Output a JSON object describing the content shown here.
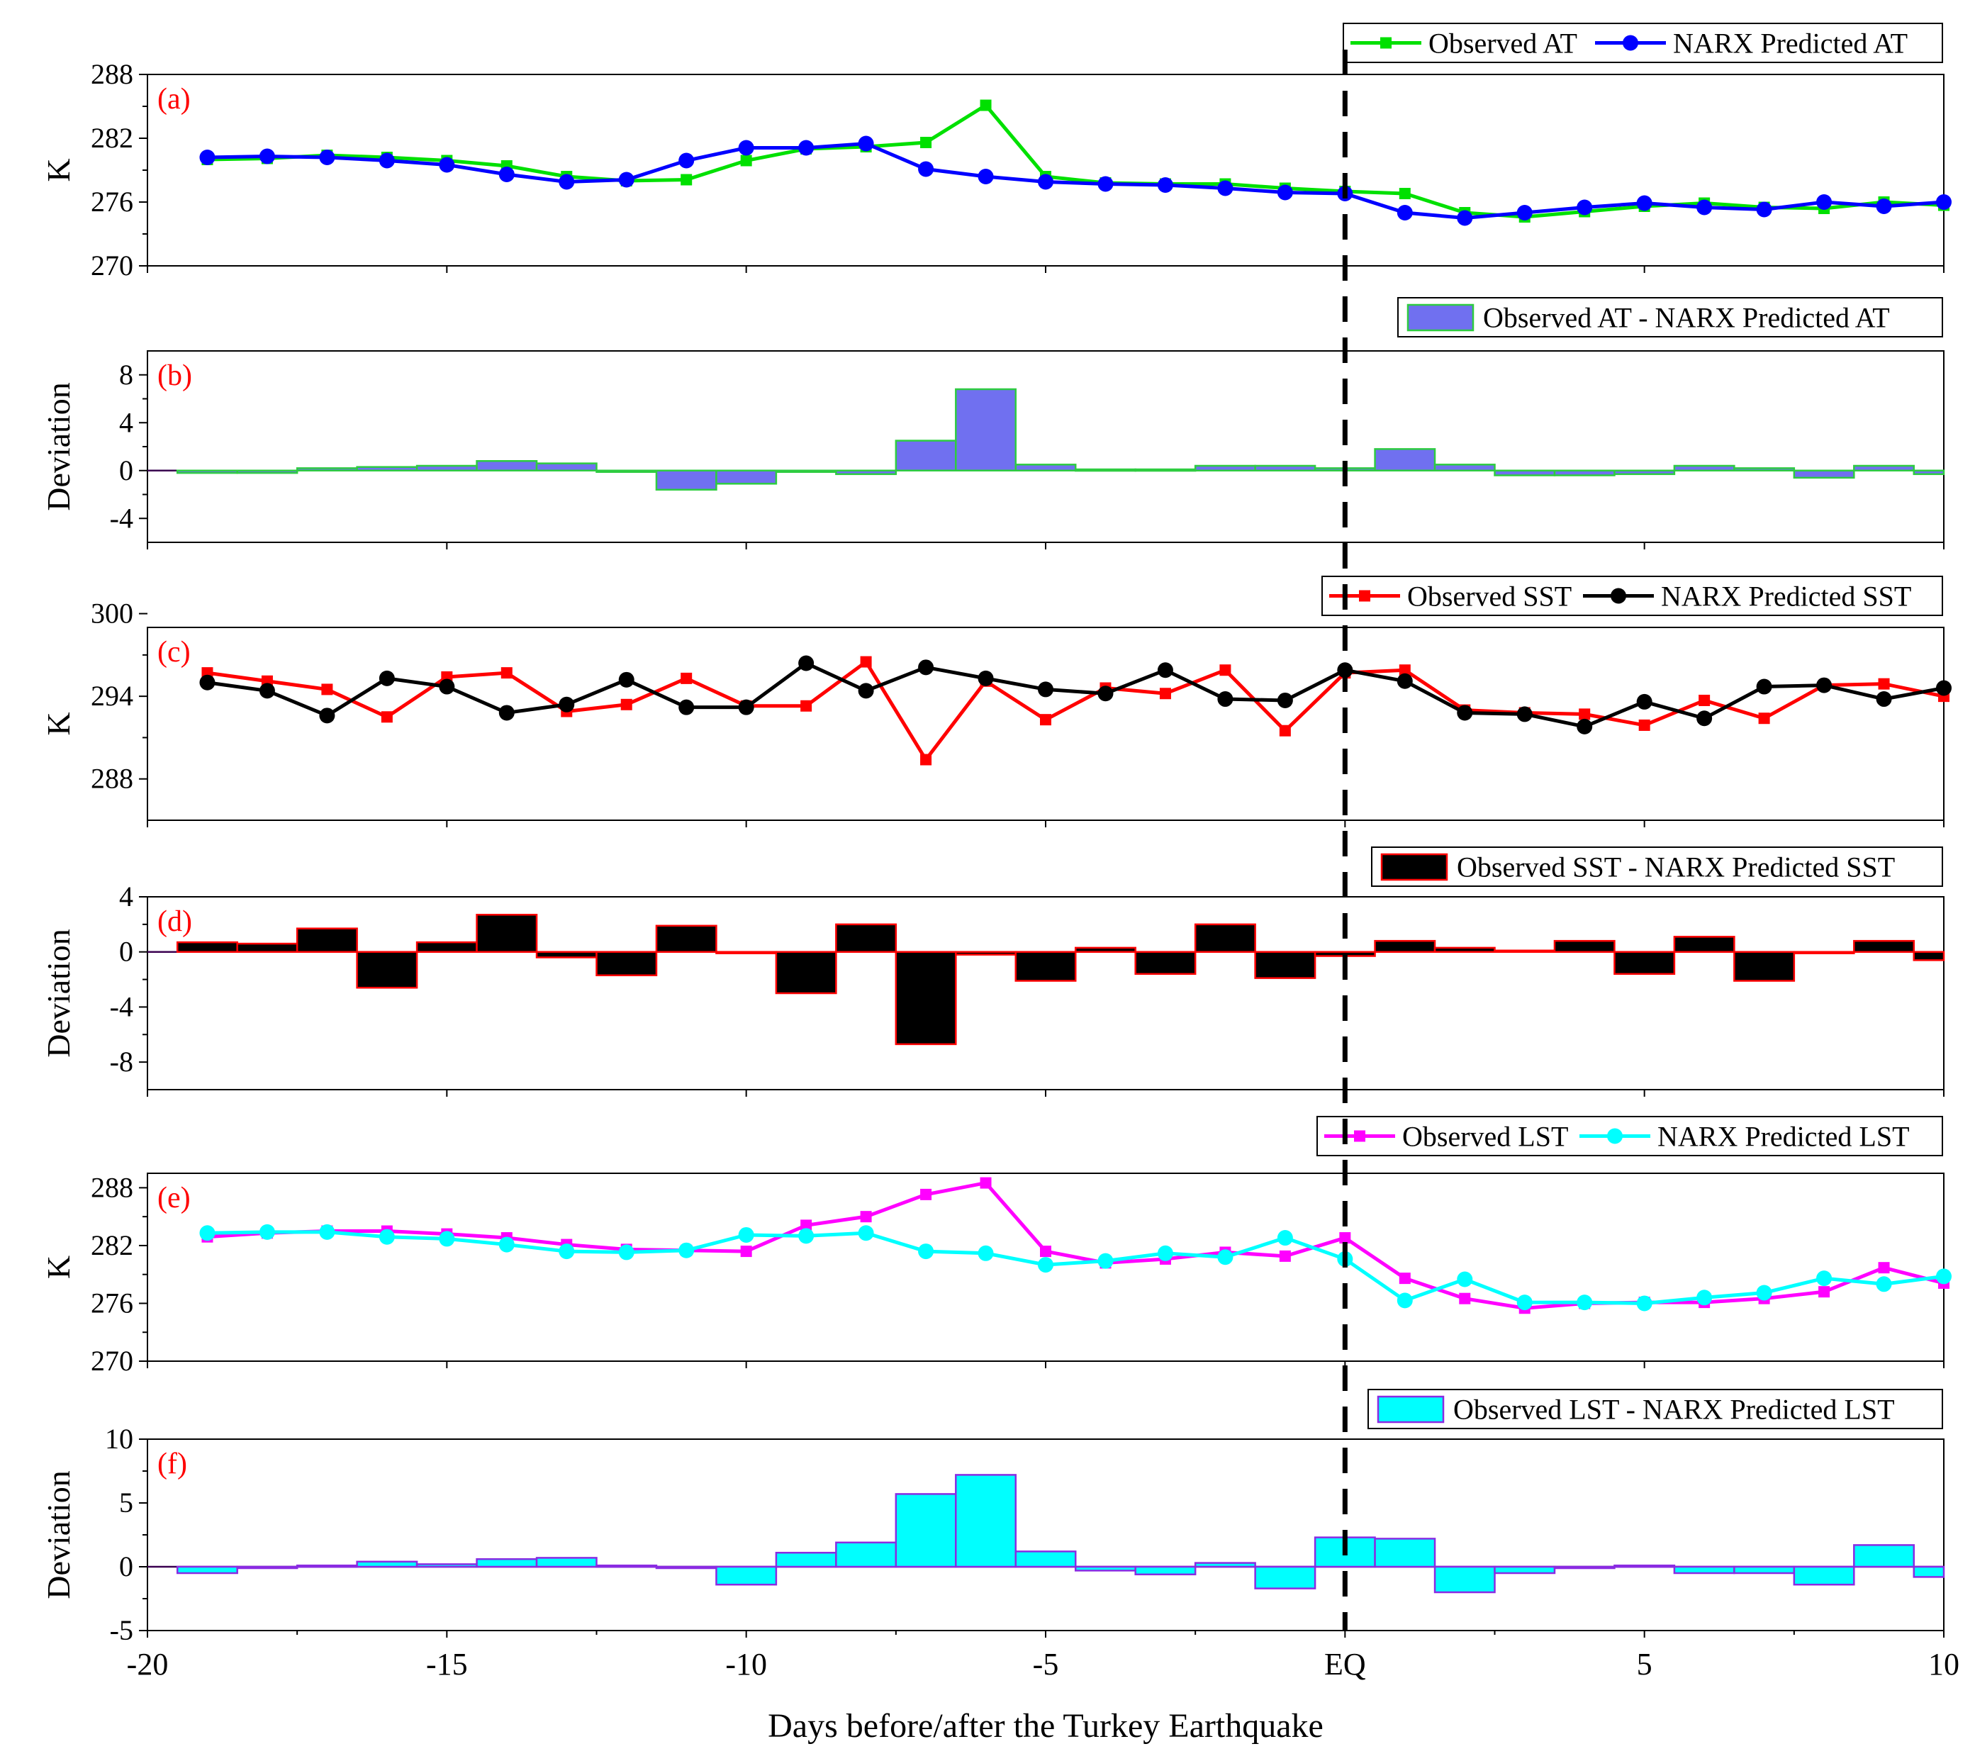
{
  "chart_data": [
    {
      "type": "line",
      "panel_label": "(a)",
      "ylabel": "K",
      "ylim": [
        270,
        288
      ],
      "yticks": [
        270,
        276,
        282,
        288
      ],
      "legend": [
        "Observed AT",
        "NARX Predicted AT"
      ],
      "x": [
        -19,
        -18,
        -17,
        -16,
        -15,
        -14,
        -13,
        -12,
        -11,
        -10,
        -9,
        -8,
        -7,
        -6,
        -5,
        -4,
        -3,
        -2,
        -1,
        0,
        1,
        2,
        3,
        4,
        5,
        6,
        7,
        8,
        9,
        10
      ],
      "series": [
        {
          "name": "Observed AT",
          "color": "#00e000",
          "marker": "square",
          "values": [
            280.0,
            280.1,
            280.4,
            280.2,
            279.9,
            279.4,
            278.4,
            278.0,
            278.1,
            279.9,
            281.0,
            281.2,
            281.6,
            285.1,
            278.4,
            277.8,
            277.7,
            277.7,
            277.3,
            277.0,
            276.8,
            275.0,
            274.6,
            275.1,
            275.6,
            275.9,
            275.5,
            275.4,
            276.0,
            275.7
          ]
        },
        {
          "name": "NARX Predicted AT",
          "color": "#0000ff",
          "marker": "circle",
          "values": [
            280.2,
            280.3,
            280.2,
            279.9,
            279.5,
            278.6,
            277.9,
            278.1,
            279.9,
            281.1,
            281.1,
            281.5,
            279.1,
            278.4,
            277.9,
            277.7,
            277.6,
            277.3,
            276.9,
            276.8,
            275.0,
            274.5,
            275.0,
            275.5,
            275.9,
            275.5,
            275.3,
            276.0,
            275.6,
            276.0
          ]
        }
      ]
    },
    {
      "type": "bar",
      "panel_label": "(b)",
      "ylabel": "Deviation",
      "ylim": [
        -6,
        10
      ],
      "yticks": [
        -4,
        0,
        4,
        8
      ],
      "legend": [
        "Observed AT - NARX Predicted AT"
      ],
      "fill": "#7070f0",
      "edge": "#2ecc40",
      "x": [
        -19,
        -18,
        -17,
        -16,
        -15,
        -14,
        -13,
        -12,
        -11,
        -10,
        -9,
        -8,
        -7,
        -6,
        -5,
        -4,
        -3,
        -2,
        -1,
        0,
        1,
        2,
        3,
        4,
        5,
        6,
        7,
        8,
        9,
        10
      ],
      "values": [
        -0.2,
        -0.2,
        0.2,
        0.3,
        0.4,
        0.8,
        0.6,
        -0.1,
        -1.6,
        -1.1,
        -0.1,
        -0.3,
        2.5,
        6.8,
        0.5,
        0.1,
        0.1,
        0.4,
        0.4,
        0.2,
        1.8,
        0.5,
        -0.4,
        -0.4,
        -0.3,
        0.4,
        0.2,
        -0.6,
        0.4,
        -0.3
      ]
    },
    {
      "type": "line",
      "panel_label": "(c)",
      "ylabel": "K",
      "ylim": [
        285,
        299
      ],
      "yticks": [
        288,
        294,
        300
      ],
      "legend": [
        "Observed SST",
        "NARX Predicted SST"
      ],
      "x": [
        -19,
        -18,
        -17,
        -16,
        -15,
        -14,
        -13,
        -12,
        -11,
        -10,
        -9,
        -8,
        -7,
        -6,
        -5,
        -4,
        -3,
        -2,
        -1,
        0,
        1,
        2,
        3,
        4,
        5,
        6,
        7,
        8,
        9,
        10
      ],
      "series": [
        {
          "name": "Observed SST",
          "color": "#ff0000",
          "marker": "square",
          "values": [
            295.7,
            295.1,
            294.5,
            292.5,
            295.4,
            295.7,
            292.9,
            293.4,
            295.3,
            293.3,
            293.3,
            296.5,
            289.4,
            295.1,
            292.3,
            294.6,
            294.2,
            295.9,
            291.5,
            295.7,
            295.9,
            293.0,
            292.8,
            292.7,
            291.9,
            293.7,
            292.4,
            294.8,
            294.9,
            294.0
          ]
        },
        {
          "name": "NARX Predicted SST",
          "color": "#000000",
          "marker": "circle",
          "values": [
            295.0,
            294.4,
            292.6,
            295.3,
            294.7,
            292.8,
            293.4,
            295.2,
            293.2,
            293.2,
            296.4,
            294.4,
            296.1,
            295.3,
            294.5,
            294.2,
            295.9,
            293.8,
            293.7,
            295.9,
            295.1,
            292.8,
            292.7,
            291.8,
            293.6,
            292.4,
            294.7,
            294.8,
            293.8,
            294.6
          ]
        }
      ]
    },
    {
      "type": "bar",
      "panel_label": "(d)",
      "ylabel": "Deviation",
      "ylim": [
        -10,
        4
      ],
      "yticks": [
        -8,
        -4,
        0,
        4
      ],
      "legend": [
        "Observed SST - NARX Predicted SST"
      ],
      "fill": "#000000",
      "edge": "#ff0000",
      "x": [
        -19,
        -18,
        -17,
        -16,
        -15,
        -14,
        -13,
        -12,
        -11,
        -10,
        -9,
        -8,
        -7,
        -6,
        -5,
        -4,
        -3,
        -2,
        -1,
        0,
        1,
        2,
        3,
        4,
        5,
        6,
        7,
        8,
        9,
        10
      ],
      "values": [
        0.7,
        0.6,
        1.7,
        -2.6,
        0.7,
        2.7,
        -0.4,
        -1.7,
        1.9,
        0.0,
        -3.0,
        2.0,
        -6.7,
        -0.2,
        -2.1,
        0.3,
        -1.6,
        2.0,
        -1.9,
        -0.3,
        0.8,
        0.3,
        0.1,
        0.8,
        -1.6,
        1.1,
        -2.1,
        0.0,
        0.8,
        -0.6
      ]
    },
    {
      "type": "line",
      "panel_label": "(e)",
      "ylabel": "K",
      "ylim": [
        270,
        289.5
      ],
      "yticks": [
        270,
        276,
        282,
        288
      ],
      "legend": [
        "Observed LST",
        "NARX Predicted LST"
      ],
      "x": [
        -19,
        -18,
        -17,
        -16,
        -15,
        -14,
        -13,
        -12,
        -11,
        -10,
        -9,
        -8,
        -7,
        -6,
        -5,
        -4,
        -3,
        -2,
        -1,
        0,
        1,
        2,
        3,
        4,
        5,
        6,
        7,
        8,
        9,
        10
      ],
      "series": [
        {
          "name": "Observed LST",
          "color": "#ff00ff",
          "marker": "square",
          "values": [
            282.9,
            283.3,
            283.5,
            283.5,
            283.2,
            282.8,
            282.1,
            281.6,
            281.5,
            281.4,
            284.1,
            285.0,
            287.3,
            288.5,
            281.4,
            280.2,
            280.6,
            281.3,
            280.9,
            282.8,
            278.6,
            276.5,
            275.5,
            276.0,
            276.1,
            276.1,
            276.5,
            277.2,
            279.7,
            278.1
          ]
        },
        {
          "name": "NARX Predicted LST",
          "color": "#00ffff",
          "marker": "circle",
          "values": [
            283.3,
            283.4,
            283.4,
            282.9,
            282.7,
            282.1,
            281.4,
            281.3,
            281.5,
            283.1,
            283.0,
            283.3,
            281.4,
            281.2,
            280.0,
            280.4,
            281.2,
            280.8,
            282.8,
            280.6,
            276.3,
            278.5,
            276.1,
            276.1,
            276.0,
            276.6,
            277.1,
            278.6,
            278.0,
            278.8
          ]
        }
      ]
    },
    {
      "type": "bar",
      "panel_label": "(f)",
      "ylabel": "Deviation",
      "ylim": [
        -5,
        10
      ],
      "yticks": [
        -5,
        0,
        5,
        10
      ],
      "legend": [
        "Observed LST - NARX Predicted LST"
      ],
      "fill": "#00ffff",
      "edge": "#8a2be2",
      "x": [
        -19,
        -18,
        -17,
        -16,
        -15,
        -14,
        -13,
        -12,
        -11,
        -10,
        -9,
        -8,
        -7,
        -6,
        -5,
        -4,
        -3,
        -2,
        -1,
        0,
        1,
        2,
        3,
        4,
        5,
        6,
        7,
        8,
        9,
        10
      ],
      "values": [
        -0.5,
        -0.1,
        0.1,
        0.4,
        0.2,
        0.6,
        0.7,
        0.1,
        -0.1,
        -1.4,
        1.1,
        1.9,
        5.7,
        7.2,
        1.2,
        -0.3,
        -0.6,
        0.3,
        -1.7,
        2.3,
        2.2,
        -2.0,
        -0.5,
        -0.1,
        0.1,
        -0.5,
        -0.5,
        -1.4,
        1.7,
        -0.8
      ]
    }
  ],
  "x_axis": {
    "xlim": [
      -20,
      10
    ],
    "ticks": [
      {
        "value": -20,
        "label": "-20"
      },
      {
        "value": -15,
        "label": "-15"
      },
      {
        "value": -10,
        "label": "-10"
      },
      {
        "value": -5,
        "label": "-5"
      },
      {
        "value": 0,
        "label": "EQ"
      },
      {
        "value": 5,
        "label": "5"
      },
      {
        "value": 10,
        "label": "10"
      }
    ],
    "xlabel": "Days before/after the Turkey Earthquake"
  },
  "eq_marker": {
    "value": 0,
    "style": "dashed",
    "color": "#000000"
  }
}
